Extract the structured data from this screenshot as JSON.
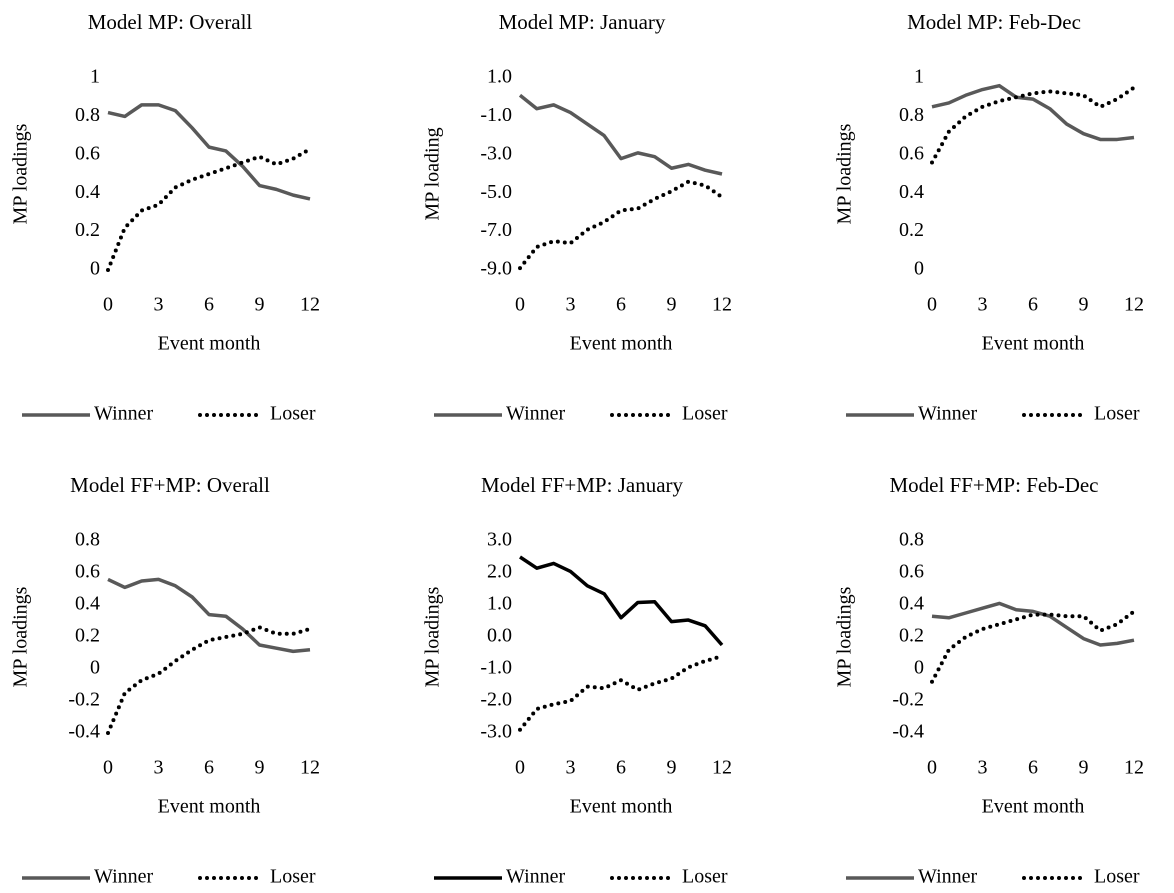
{
  "chart_data": [
    {
      "type": "line",
      "title": "Model MP: Overall",
      "x_label": "Event month",
      "y_label": "MP loadings",
      "x": [
        0,
        1,
        2,
        3,
        4,
        5,
        6,
        7,
        8,
        9,
        10,
        11,
        12
      ],
      "xlim": [
        0,
        12
      ],
      "xticks": [
        0,
        3,
        6,
        9,
        12
      ],
      "ylim": [
        0,
        1
      ],
      "yticks": [
        0,
        0.2,
        0.4,
        0.6,
        0.8,
        1
      ],
      "series": [
        {
          "name": "Winner",
          "color": "#595959",
          "line_style": "solid",
          "values": [
            0.82,
            0.8,
            0.86,
            0.86,
            0.83,
            0.74,
            0.64,
            0.62,
            0.54,
            0.44,
            0.42,
            0.39,
            0.37
          ]
        },
        {
          "name": "Loser",
          "color": "#000000",
          "line_style": "dotted",
          "values": [
            0.0,
            0.22,
            0.31,
            0.34,
            0.43,
            0.47,
            0.5,
            0.53,
            0.56,
            0.59,
            0.55,
            0.58,
            0.63
          ]
        }
      ]
    },
    {
      "type": "line",
      "title": "Model MP: January",
      "x_label": "Event month",
      "y_label": "MP loading",
      "x": [
        0,
        1,
        2,
        3,
        4,
        5,
        6,
        7,
        8,
        9,
        10,
        11,
        12
      ],
      "xlim": [
        0,
        12
      ],
      "xticks": [
        0,
        3,
        6,
        9,
        12
      ],
      "ylim": [
        -9,
        1
      ],
      "yticks": [
        {
          "value": -9,
          "label": "-9.0"
        },
        {
          "value": -7,
          "label": "-7.0"
        },
        {
          "value": -5,
          "label": "-5.0"
        },
        {
          "value": -3,
          "label": "-3.0"
        },
        {
          "value": -1,
          "label": "-1.0"
        },
        {
          "value": 1,
          "label": "1.0"
        }
      ],
      "series": [
        {
          "name": "Winner",
          "color": "#595959",
          "line_style": "solid",
          "values": [
            0.1,
            -0.6,
            -0.4,
            -0.8,
            -1.4,
            -2.0,
            -3.2,
            -2.9,
            -3.1,
            -3.7,
            -3.5,
            -3.8,
            -4.0
          ]
        },
        {
          "name": "Loser",
          "color": "#000000",
          "line_style": "dotted",
          "values": [
            -8.9,
            -7.8,
            -7.5,
            -7.6,
            -6.9,
            -6.5,
            -5.9,
            -5.8,
            -5.3,
            -4.9,
            -4.4,
            -4.6,
            -5.2
          ]
        }
      ]
    },
    {
      "type": "line",
      "title": "Model MP: Feb-Dec",
      "x_label": "Event month",
      "y_label": "MP loadings",
      "x": [
        0,
        1,
        2,
        3,
        4,
        5,
        6,
        7,
        8,
        9,
        10,
        11,
        12
      ],
      "xlim": [
        0,
        12
      ],
      "xticks": [
        0,
        3,
        6,
        9,
        12
      ],
      "ylim": [
        0,
        1
      ],
      "yticks": [
        0,
        0.2,
        0.4,
        0.6,
        0.8,
        1
      ],
      "series": [
        {
          "name": "Winner",
          "color": "#595959",
          "line_style": "solid",
          "values": [
            0.85,
            0.87,
            0.91,
            0.94,
            0.96,
            0.9,
            0.89,
            0.84,
            0.76,
            0.71,
            0.68,
            0.68,
            0.69
          ]
        },
        {
          "name": "Loser",
          "color": "#000000",
          "line_style": "dotted",
          "values": [
            0.56,
            0.72,
            0.8,
            0.85,
            0.88,
            0.9,
            0.92,
            0.93,
            0.92,
            0.91,
            0.85,
            0.89,
            0.95
          ]
        }
      ]
    },
    {
      "type": "line",
      "title": "Model FF+MP: Overall",
      "x_label": "Event month",
      "y_label": "MP loadings",
      "x": [
        0,
        1,
        2,
        3,
        4,
        5,
        6,
        7,
        8,
        9,
        10,
        11,
        12
      ],
      "xlim": [
        0,
        12
      ],
      "xticks": [
        0,
        3,
        6,
        9,
        12
      ],
      "ylim": [
        -0.4,
        0.8
      ],
      "yticks": [
        -0.4,
        -0.2,
        0,
        0.2,
        0.4,
        0.6,
        0.8
      ],
      "series": [
        {
          "name": "Winner",
          "color": "#595959",
          "line_style": "solid",
          "values": [
            0.56,
            0.51,
            0.55,
            0.56,
            0.52,
            0.45,
            0.34,
            0.33,
            0.25,
            0.15,
            0.13,
            0.11,
            0.12
          ]
        },
        {
          "name": "Loser",
          "color": "#000000",
          "line_style": "dotted",
          "values": [
            -0.4,
            -0.15,
            -0.07,
            -0.03,
            0.05,
            0.12,
            0.18,
            0.2,
            0.22,
            0.26,
            0.22,
            0.22,
            0.25
          ]
        }
      ]
    },
    {
      "type": "line",
      "title": "Model FF+MP: January",
      "x_label": "Event month",
      "y_label": "MP loadings",
      "x": [
        0,
        1,
        2,
        3,
        4,
        5,
        6,
        7,
        8,
        9,
        10,
        11,
        12
      ],
      "xlim": [
        0,
        12
      ],
      "xticks": [
        0,
        3,
        6,
        9,
        12
      ],
      "ylim": [
        -3,
        3
      ],
      "yticks": [
        {
          "value": -3,
          "label": "-3.0"
        },
        {
          "value": -2,
          "label": "-2.0"
        },
        {
          "value": -1,
          "label": "-1.0"
        },
        {
          "value": 0,
          "label": "0.0"
        },
        {
          "value": 1,
          "label": "1.0"
        },
        {
          "value": 2,
          "label": "2.0"
        },
        {
          "value": 3,
          "label": "3.0"
        }
      ],
      "series": [
        {
          "name": "Winner",
          "color": "#000000",
          "line_style": "solid",
          "values": [
            2.5,
            2.15,
            2.3,
            2.05,
            1.6,
            1.35,
            0.6,
            1.08,
            1.1,
            0.48,
            0.53,
            0.35,
            -0.25
          ]
        },
        {
          "name": "Loser",
          "color": "#000000",
          "line_style": "dotted",
          "values": [
            -2.9,
            -2.25,
            -2.1,
            -2.0,
            -1.55,
            -1.6,
            -1.35,
            -1.65,
            -1.45,
            -1.3,
            -0.95,
            -0.75,
            -0.6
          ]
        }
      ]
    },
    {
      "type": "line",
      "title": "Model FF+MP: Feb-Dec",
      "x_label": "Event month",
      "y_label": "MP loadings",
      "x": [
        0,
        1,
        2,
        3,
        4,
        5,
        6,
        7,
        8,
        9,
        10,
        11,
        12
      ],
      "xlim": [
        0,
        12
      ],
      "xticks": [
        0,
        3,
        6,
        9,
        12
      ],
      "ylim": [
        -0.4,
        0.8
      ],
      "yticks": [
        -0.4,
        -0.2,
        0,
        0.2,
        0.4,
        0.6,
        0.8
      ],
      "series": [
        {
          "name": "Winner",
          "color": "#595959",
          "line_style": "solid",
          "values": [
            0.33,
            0.32,
            0.35,
            0.38,
            0.41,
            0.37,
            0.36,
            0.33,
            0.26,
            0.19,
            0.15,
            0.16,
            0.18
          ]
        },
        {
          "name": "Loser",
          "color": "#000000",
          "line_style": "dotted",
          "values": [
            -0.08,
            0.12,
            0.2,
            0.25,
            0.28,
            0.31,
            0.34,
            0.34,
            0.33,
            0.33,
            0.24,
            0.28,
            0.36
          ]
        }
      ]
    }
  ]
}
